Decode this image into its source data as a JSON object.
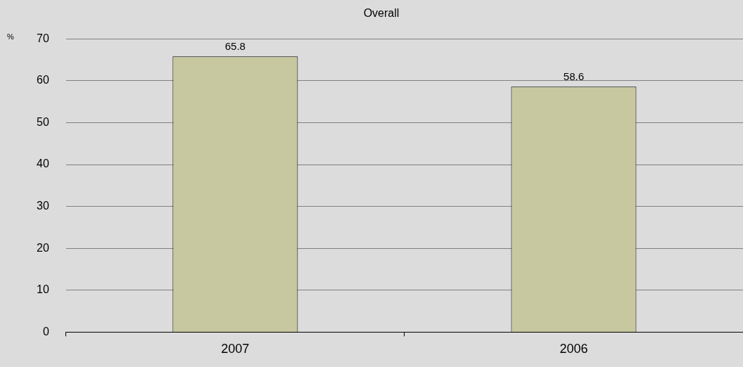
{
  "chart_data": {
    "type": "bar",
    "title": "Overall",
    "ylabel": "%",
    "categories": [
      "2007",
      "2006"
    ],
    "values": [
      65.8,
      58.6
    ],
    "color": "#c8c8a0",
    "ylim": [
      0,
      70
    ],
    "yticks": [
      0,
      10,
      20,
      30,
      40,
      50,
      60,
      70
    ],
    "grid": "y",
    "data_labels": true
  }
}
